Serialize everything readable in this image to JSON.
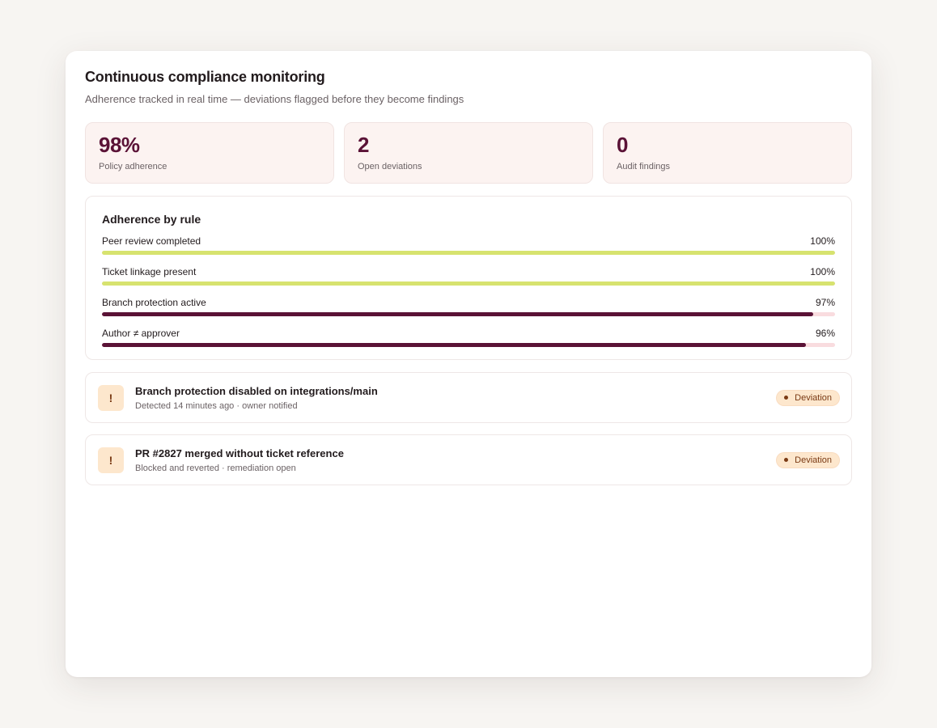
{
  "header": {
    "title": "Continuous compliance monitoring",
    "subtitle": "Adherence tracked in real time — deviations flagged before they become findings"
  },
  "stats": [
    {
      "value": "98%",
      "label": "Policy adherence"
    },
    {
      "value": "2",
      "label": "Open deviations"
    },
    {
      "value": "0",
      "label": "Audit findings"
    }
  ],
  "rules": {
    "title": "Adherence by rule",
    "items": [
      {
        "label": "Peer review completed",
        "percent_text": "100%",
        "value": 1.0,
        "color": "#d7e36f"
      },
      {
        "label": "Ticket linkage present",
        "percent_text": "100%",
        "value": 1.0,
        "color": "#d7e36f"
      },
      {
        "label": "Branch protection active",
        "percent_text": "97%",
        "value": 0.97,
        "color": "#5a1236"
      },
      {
        "label": "Author ≠ approver",
        "percent_text": "96%",
        "value": 0.96,
        "color": "#5a1236"
      }
    ]
  },
  "alerts": [
    {
      "icon": "exclamation-icon",
      "icon_glyph": "!",
      "title": "Branch protection disabled on integrations/main",
      "detail": "Detected 14 minutes ago · owner notified",
      "badge": "Deviation"
    },
    {
      "icon": "exclamation-icon",
      "icon_glyph": "!",
      "title": "PR #2827 merged without ticket reference",
      "detail": "Blocked and reverted · remediation open",
      "badge": "Deviation"
    }
  ],
  "colors": {
    "accent": "#5a1236",
    "success": "#d7e36f",
    "warning_bg": "#fde7cd",
    "warning_fg": "#7a3a14",
    "track": "#f9dcdf"
  }
}
